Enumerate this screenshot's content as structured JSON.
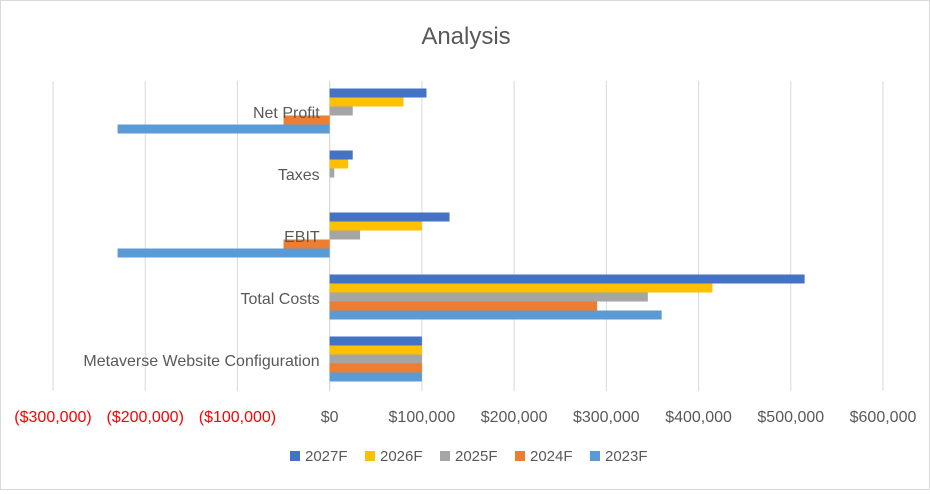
{
  "chart_data": {
    "type": "bar",
    "orientation": "horizontal",
    "title": "Analysis",
    "categories": [
      "Net Profit",
      "Taxes",
      "EBIT",
      "Total Costs",
      "Metaverse Website Configuration"
    ],
    "series": [
      {
        "name": "2027F",
        "color": "#4472c4",
        "values": [
          105000,
          25000,
          130000,
          515000,
          100000
        ]
      },
      {
        "name": "2026F",
        "color": "#ffc000",
        "values": [
          80000,
          20000,
          100000,
          415000,
          100000
        ]
      },
      {
        "name": "2025F",
        "color": "#a5a5a5",
        "values": [
          25000,
          5000,
          33000,
          345000,
          100000
        ]
      },
      {
        "name": "2024F",
        "color": "#ed7d31",
        "values": [
          -50000,
          0,
          -50000,
          290000,
          100000
        ]
      },
      {
        "name": "2023F",
        "color": "#5b9bd5",
        "values": [
          -230000,
          0,
          -230000,
          360000,
          100000
        ]
      }
    ],
    "xlim": [
      -300000,
      600000
    ],
    "x_ticks": [
      -300000,
      -200000,
      -100000,
      0,
      100000,
      200000,
      300000,
      400000,
      500000,
      600000
    ],
    "x_tick_labels": [
      "($300,000)",
      "($200,000)",
      "($100,000)",
      "$0",
      "$100,000",
      "$200,000",
      "$300,000",
      "$400,000",
      "$500,000",
      "$600,000"
    ],
    "negative_tick_color": "#ff0000",
    "grid": true,
    "legend_position": "bottom",
    "xlabel": "",
    "ylabel": ""
  }
}
